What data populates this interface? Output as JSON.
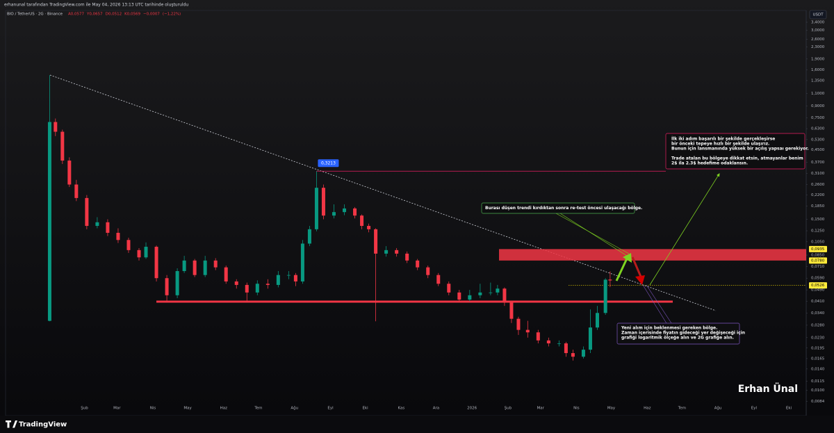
{
  "header": {
    "credit": "erhanunal tarafından TradingView.com ile May 04, 2026 13:13 UTC tarihinde oluşturuldu",
    "symbol": "BIO / TetherUS · 2G · Binance",
    "legend_values": [
      {
        "value": 0.0577,
        "label": "A0,0577"
      },
      {
        "value": 0.0657,
        "label": "Y0,0657"
      },
      {
        "value": 0.0512,
        "label": "D0,0512"
      },
      {
        "value": 0.0569,
        "label": "K0,0569"
      },
      {
        "value": -0.0007,
        "label": "−0,0007"
      },
      {
        "value": -1.22,
        "label": "(−1,22%)"
      }
    ]
  },
  "currency": "USDT",
  "watermark": "Erhan Ünal",
  "footer": "TradingView",
  "chart_data": {
    "type": "candlestick",
    "log_scale": true,
    "grid": false,
    "up_color": "#089981",
    "down_color": "#f23645",
    "x": [
      1,
      6,
      12,
      18,
      24,
      33,
      42,
      51,
      60,
      69,
      78,
      84,
      93,
      102,
      111,
      117,
      126,
      135,
      144,
      153,
      162,
      171,
      180,
      189,
      198,
      207,
      213,
      219,
      225,
      231,
      237,
      246,
      255,
      264,
      270,
      276,
      282,
      291,
      300,
      309,
      318,
      327,
      336,
      345,
      354,
      363,
      372,
      381,
      387,
      393,
      399,
      405,
      413,
      422,
      431,
      440,
      446,
      452,
      461,
      467,
      473,
      480,
      484
    ],
    "open": [
      0.03,
      0.7,
      0.6,
      0.38,
      0.26,
      0.21,
      0.135,
      0.143,
      0.121,
      0.108,
      0.092,
      0.082,
      0.097,
      0.059,
      0.045,
      0.066,
      0.078,
      0.062,
      0.078,
      0.07,
      0.056,
      0.053,
      0.047,
      0.054,
      0.053,
      0.062,
      0.062,
      0.056,
      0.102,
      0.128,
      0.247,
      0.159,
      0.168,
      0.178,
      0.159,
      0.135,
      0.128,
      0.087,
      0.092,
      0.087,
      0.078,
      0.07,
      0.062,
      0.054,
      0.047,
      0.042,
      0.045,
      0.047,
      0.047,
      0.05,
      0.04,
      0.031,
      0.026,
      0.025,
      0.022,
      0.021,
      0.021,
      0.018,
      0.017,
      0.019,
      0.027,
      0.034,
      0.0577
    ],
    "high": [
      1.47,
      0.74,
      0.62,
      0.4,
      0.28,
      0.22,
      0.155,
      0.15,
      0.13,
      0.112,
      0.095,
      0.104,
      0.099,
      0.062,
      0.069,
      0.084,
      0.08,
      0.084,
      0.081,
      0.072,
      0.058,
      0.055,
      0.057,
      0.058,
      0.066,
      0.066,
      0.064,
      0.108,
      0.135,
      0.3213,
      0.26,
      0.19,
      0.19,
      0.182,
      0.162,
      0.14,
      0.13,
      0.098,
      0.095,
      0.09,
      0.08,
      0.072,
      0.064,
      0.056,
      0.049,
      0.049,
      0.054,
      0.055,
      0.053,
      0.051,
      0.041,
      0.032,
      0.03,
      0.026,
      0.023,
      0.022,
      0.0215,
      0.019,
      0.02,
      0.036,
      0.038,
      0.059,
      0.0657
    ],
    "low": [
      0.0298,
      0.56,
      0.36,
      0.25,
      0.2,
      0.128,
      0.13,
      0.115,
      0.103,
      0.088,
      0.078,
      0.08,
      0.056,
      0.041,
      0.043,
      0.064,
      0.06,
      0.06,
      0.067,
      0.054,
      0.05,
      0.041,
      0.045,
      0.05,
      0.051,
      0.058,
      0.052,
      0.054,
      0.098,
      0.124,
      0.15,
      0.152,
      0.16,
      0.152,
      0.128,
      0.122,
      0.0298,
      0.083,
      0.083,
      0.075,
      0.067,
      0.059,
      0.052,
      0.045,
      0.04,
      0.041,
      0.043,
      0.045,
      0.045,
      0.038,
      0.029,
      0.024,
      0.023,
      0.021,
      0.02,
      0.02,
      0.017,
      0.016,
      0.0165,
      0.018,
      0.026,
      0.033,
      0.0512
    ],
    "close": [
      0.7,
      0.6,
      0.38,
      0.26,
      0.21,
      0.135,
      0.143,
      0.121,
      0.108,
      0.092,
      0.082,
      0.097,
      0.059,
      0.045,
      0.066,
      0.078,
      0.062,
      0.078,
      0.07,
      0.056,
      0.053,
      0.047,
      0.054,
      0.053,
      0.062,
      0.062,
      0.056,
      0.102,
      0.128,
      0.247,
      0.159,
      0.168,
      0.178,
      0.159,
      0.135,
      0.128,
      0.087,
      0.092,
      0.087,
      0.078,
      0.07,
      0.062,
      0.054,
      0.047,
      0.042,
      0.045,
      0.047,
      0.047,
      0.05,
      0.04,
      0.031,
      0.026,
      0.025,
      0.022,
      0.021,
      0.021,
      0.018,
      0.017,
      0.019,
      0.027,
      0.034,
      0.0576,
      0.0569
    ],
    "xlim": [
      -37,
      653
    ],
    "xticks": [
      {
        "value": 31,
        "label": "Şub"
      },
      {
        "value": 59,
        "label": "Mar"
      },
      {
        "value": 90,
        "label": "Nis"
      },
      {
        "value": 120,
        "label": "May"
      },
      {
        "value": 151,
        "label": "Haz"
      },
      {
        "value": 181,
        "label": "Tem"
      },
      {
        "value": 212,
        "label": "Ağu"
      },
      {
        "value": 243,
        "label": "Eyl"
      },
      {
        "value": 273,
        "label": "Eki"
      },
      {
        "value": 304,
        "label": "Kas"
      },
      {
        "value": 334,
        "label": "Ara"
      },
      {
        "value": 365,
        "label": "2026"
      },
      {
        "value": 396,
        "label": "Şub"
      },
      {
        "value": 424,
        "label": "Mar"
      },
      {
        "value": 455,
        "label": "Nis"
      },
      {
        "value": 485,
        "label": "May"
      },
      {
        "value": 516,
        "label": "Haz"
      },
      {
        "value": 546,
        "label": "Tem"
      },
      {
        "value": 577,
        "label": "Ağu"
      },
      {
        "value": 608,
        "label": "Eyl"
      },
      {
        "value": 638,
        "label": "Eki"
      }
    ],
    "ylim": [
      0.0073,
      4.1
    ],
    "yticks": [
      {
        "value": 3.4,
        "label": "3,4000"
      },
      {
        "value": 3.0,
        "label": "3,0000"
      },
      {
        "value": 2.6,
        "label": "2,6000"
      },
      {
        "value": 2.3,
        "label": "2,3000"
      },
      {
        "value": 1.9,
        "label": "1,9000"
      },
      {
        "value": 1.6,
        "label": "1,6000"
      },
      {
        "value": 1.35,
        "label": "1,3500"
      },
      {
        "value": 1.1,
        "label": "1,1000"
      },
      {
        "value": 0.9,
        "label": "0,9000"
      },
      {
        "value": 0.75,
        "label": "0,7500"
      },
      {
        "value": 0.63,
        "label": "0,6300"
      },
      {
        "value": 0.53,
        "label": "0,5300"
      },
      {
        "value": 0.45,
        "label": "0,4500"
      },
      {
        "value": 0.37,
        "label": "0,3700"
      },
      {
        "value": 0.31,
        "label": "0,3100"
      },
      {
        "value": 0.26,
        "label": "0,2600"
      },
      {
        "value": 0.22,
        "label": "0,2200"
      },
      {
        "value": 0.185,
        "label": "0,1850"
      },
      {
        "value": 0.15,
        "label": "0,1500"
      },
      {
        "value": 0.125,
        "label": "0,1250"
      },
      {
        "value": 0.105,
        "label": "0,1050"
      },
      {
        "value": 0.085,
        "label": "0,0850"
      },
      {
        "value": 0.071,
        "label": "0,0710"
      },
      {
        "value": 0.059,
        "label": "0,0590"
      },
      {
        "value": 0.049,
        "label": "0,0490"
      },
      {
        "value": 0.041,
        "label": "0,0410"
      },
      {
        "value": 0.034,
        "label": "0,0340"
      },
      {
        "value": 0.028,
        "label": "0,0280"
      },
      {
        "value": 0.023,
        "label": "0,0230"
      },
      {
        "value": 0.0195,
        "label": "0,0195"
      },
      {
        "value": 0.0165,
        "label": "0,0165"
      },
      {
        "value": 0.014,
        "label": "0,0140"
      },
      {
        "value": 0.0115,
        "label": "0,0115"
      },
      {
        "value": 0.01,
        "label": "0,0100"
      },
      {
        "value": 0.0084,
        "label": "0,0084"
      }
    ],
    "zone": {
      "top": {
        "value": 0.0935,
        "label": "0,0935"
      },
      "bottom": {
        "value": 0.078,
        "label": "0,0780"
      }
    },
    "level": {
      "value": 0.0526,
      "label": "0,0526"
    },
    "peak": {
      "value": 0.3213,
      "label": "0,3213"
    },
    "annotations": {
      "target": [
        "İlk iki adım başarılı bir şekilde gerçekleşirse",
        "bir önceki tepeye hızlı bir şekilde ulaşırız.",
        "Bunun için lansmanında yüksek bir açılış yapsaı gerekiyor.",
        "Trade atalan bu bölgeye dikkat etsin, atmayanlar benim",
        "2$ ila 2.3$ hedefime odaklansın."
      ],
      "retest": "Burası düşen trendi kırdıktan sonra re-test öncesi ulaşacağı bölge.",
      "buy": [
        "Yeni alım için beklenmesi gereken bölge.",
        "Zaman içerisinde fiyatın gideceği yer değişeceği için",
        "grafiği logaritmik ölçeğe alın ve 2G grafiğe alın."
      ]
    }
  }
}
